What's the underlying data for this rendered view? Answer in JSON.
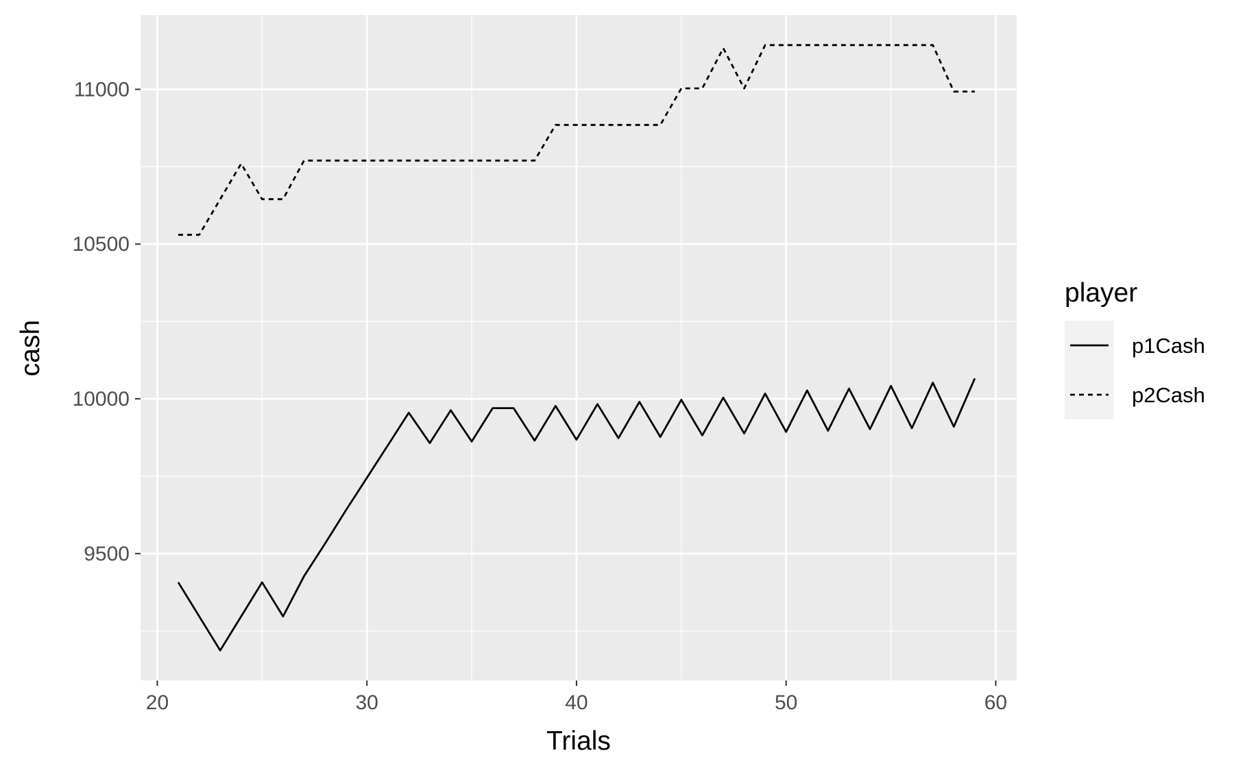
{
  "chart_data": {
    "type": "line",
    "xlabel": "Trials",
    "ylabel": "cash",
    "xlim": [
      19.2,
      61.0
    ],
    "ylim": [
      9090,
      11240
    ],
    "x_ticks": [
      20,
      30,
      40,
      50,
      60
    ],
    "y_ticks": [
      9500,
      10000,
      10500,
      11000
    ],
    "x_tick_labels": [
      "20",
      "30",
      "40",
      "50",
      "60"
    ],
    "y_tick_labels": [
      "9500",
      "10000",
      "10500",
      "11000"
    ],
    "grid": true,
    "legend": {
      "title": "player",
      "placement": "right"
    },
    "colors": {
      "panel": "#ebebeb",
      "grid": "#ffffff",
      "line": "#000000",
      "legend_key": "#f2f2f2"
    },
    "series": [
      {
        "name": "p1Cash",
        "linetype": "solid",
        "x": [
          21,
          22,
          23,
          24,
          25,
          26,
          27,
          28,
          29,
          30,
          31,
          32,
          33,
          34,
          35,
          36,
          37,
          38,
          39,
          40,
          41,
          42,
          43,
          44,
          45,
          46,
          47,
          48,
          49,
          50,
          51,
          52,
          53,
          54,
          55,
          56,
          57,
          58,
          59
        ],
        "values": [
          9407,
          9297,
          9187,
          9297,
          9407,
          9297,
          9427,
          9532,
          9640,
          9745,
          9850,
          9955,
          9857,
          9963,
          9862,
          9970,
          9970,
          9865,
          9977,
          9868,
          9983,
          9873,
          9990,
          9877,
          9997,
          9882,
          10004,
          9888,
          10017,
          9893,
          10027,
          9897,
          10033,
          9902,
          10042,
          9905,
          10052,
          9910,
          10066
        ]
      },
      {
        "name": "p2Cash",
        "linetype": "dashed",
        "x": [
          21,
          22,
          23,
          24,
          25,
          26,
          27,
          28,
          29,
          30,
          31,
          32,
          33,
          34,
          35,
          36,
          37,
          38,
          39,
          40,
          41,
          42,
          43,
          44,
          45,
          46,
          47,
          48,
          49,
          50,
          51,
          52,
          53,
          54,
          55,
          56,
          57,
          58,
          59
        ],
        "values": [
          10530,
          10530,
          10645,
          10760,
          10645,
          10645,
          10770,
          10770,
          10770,
          10770,
          10770,
          10770,
          10770,
          10770,
          10770,
          10770,
          10770,
          10770,
          10885,
          10885,
          10885,
          10885,
          10885,
          10885,
          11003,
          11003,
          11133,
          11003,
          11143,
          11143,
          11143,
          11143,
          11143,
          11143,
          11143,
          11143,
          11143,
          10993,
          10993
        ]
      }
    ]
  }
}
